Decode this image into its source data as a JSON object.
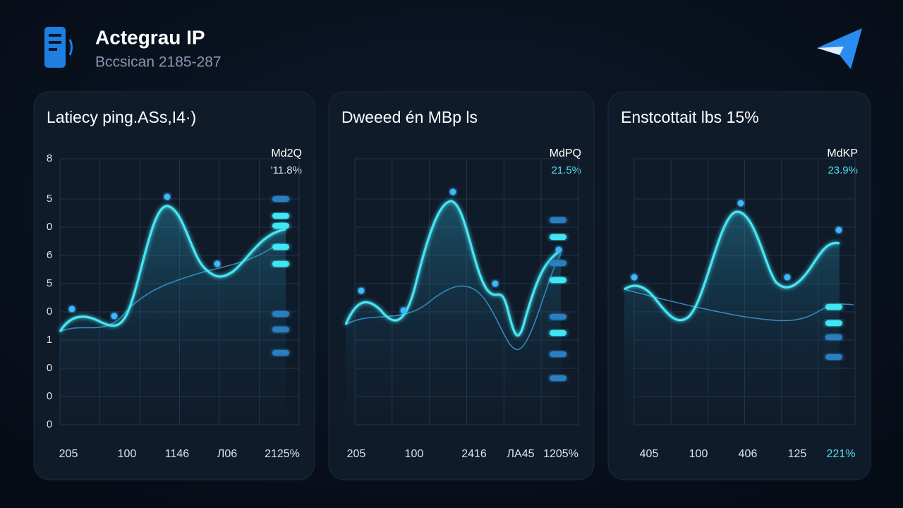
{
  "header": {
    "title": "Actegrau IP",
    "subtitle": "Bccsican 2185-287"
  },
  "panels": [
    {
      "title": "Latiecy ping.ASs,I4·)",
      "legend_label": "Md2Q",
      "legend_value": "'11.8%",
      "y_labels": [
        "8",
        "5",
        "0",
        "6",
        "5",
        "0",
        "1",
        "0",
        "0",
        "0"
      ],
      "x_labels": [
        "205",
        "100",
        "1146",
        "Л06",
        "2125%"
      ]
    },
    {
      "title": "Dweeed én MBp ls",
      "legend_label": "MdPQ",
      "legend_value": "21.5%",
      "y_labels": [],
      "x_labels": [
        "205",
        "100",
        "2416",
        "ЛA45",
        "1205%"
      ]
    },
    {
      "title": "Enstcottait lbs 15%",
      "legend_label": "MdKP",
      "legend_value": "23.9%",
      "y_labels": [],
      "x_labels": [
        "405",
        "100",
        "406",
        "125",
        "221%"
      ]
    }
  ]
}
